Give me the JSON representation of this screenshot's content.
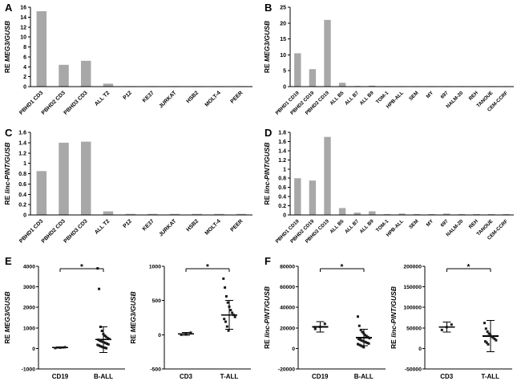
{
  "figure": {
    "panels": [
      {
        "letter": "A"
      },
      {
        "letter": "B"
      },
      {
        "letter": "C"
      },
      {
        "letter": "D"
      },
      {
        "letter": "E"
      },
      {
        "letter": "F"
      }
    ]
  },
  "colors": {
    "bar": "#a8a8a8",
    "axis": "#000000",
    "point": "#1a1a1a"
  },
  "chart_data": [
    {
      "type": "bar",
      "panel": "A",
      "ylabel_prefix": "RE ",
      "ylabel_italic": "MEG3/GUSB",
      "categories": [
        "PBHD1 CD3",
        "PBHD2 CD3",
        "PBHD3 CD3",
        "ALL T2",
        "P12",
        "KE37",
        "JURKAT",
        "HSB2",
        "MOLT-4",
        "PEER"
      ],
      "values": [
        15.2,
        4.4,
        5.2,
        0.6,
        0.05,
        0.05,
        0.05,
        0.05,
        0.05,
        0.05
      ],
      "ylim": [
        0,
        16
      ],
      "ytick_step": 2,
      "grid": false
    },
    {
      "type": "bar",
      "panel": "B",
      "ylabel_prefix": "RE ",
      "ylabel_italic": "MEG3/GUSB",
      "categories": [
        "PBHD1 CD19",
        "PBHD2 CD19",
        "PBHD3 CD19",
        "ALL B5",
        "ALL B7",
        "ALL B9",
        "TOM-1",
        "HPB-ALL",
        "SEM",
        "MY",
        "697",
        "NALM-20",
        "REH",
        "TANOUE",
        "CEM-CCRF"
      ],
      "values": [
        10.5,
        5.5,
        21.0,
        1.2,
        0.2,
        0.3,
        0.15,
        0.1,
        0.1,
        0.1,
        0.1,
        0.1,
        0.1,
        0.1,
        0.1
      ],
      "ylim": [
        0,
        25
      ],
      "ytick_step": 5,
      "grid": false
    },
    {
      "type": "bar",
      "panel": "C",
      "ylabel_prefix": "RE ",
      "ylabel_italic": "linc-PINT/GUSB",
      "categories": [
        "PBHD1 CD3",
        "PBHD2 CD3",
        "PBHD3 CD3",
        "ALL T2",
        "P12",
        "KE37",
        "JURKAT",
        "HSB2",
        "MOLT-4",
        "PEER"
      ],
      "values": [
        0.85,
        1.4,
        1.42,
        0.07,
        0.02,
        0.02,
        0.02,
        0.02,
        0.02,
        0.02
      ],
      "ylim": [
        0,
        1.6
      ],
      "ytick_step": 0.2,
      "grid": false
    },
    {
      "type": "bar",
      "panel": "D",
      "ylabel_prefix": "RE ",
      "ylabel_italic": "linc-PINT/GUSB",
      "categories": [
        "PBHD1 CD19",
        "PBHD2 CD19",
        "PBHD3 CD19",
        "ALL B5",
        "ALL B7",
        "ALL B9",
        "TOM-1",
        "HPB-ALL",
        "SEM",
        "MY",
        "697",
        "NALM-20",
        "REH",
        "TANOUE",
        "CEM-CCRF"
      ],
      "values": [
        0.8,
        0.75,
        1.7,
        0.15,
        0.05,
        0.08,
        0.02,
        0.03,
        0.02,
        0.02,
        0.03,
        0.02,
        0.02,
        0.02,
        0.02
      ],
      "ylim": [
        0,
        1.8
      ],
      "ytick_step": 0.2,
      "grid": false
    },
    {
      "type": "scatter",
      "panel": "E",
      "ylabel_prefix": "RE ",
      "ylabel_italic": "MEG3/GUSB",
      "sig": "*",
      "ylim": [
        -1000,
        4000
      ],
      "ytick_step": 1000,
      "groups": [
        {
          "label": "CD19",
          "points": [
            20,
            40,
            60
          ],
          "mean": 40,
          "err": 30
        },
        {
          "label": "B-ALL",
          "points": [
            3900,
            2900,
            1050,
            850,
            700,
            620,
            560,
            500,
            460,
            420,
            380,
            350,
            320,
            290,
            260,
            230,
            200,
            170,
            140,
            110,
            80,
            50,
            30,
            10
          ],
          "mean": 430,
          "err": 620
        }
      ]
    },
    {
      "type": "scatter",
      "panel": "E",
      "ylabel_prefix": "RE ",
      "ylabel_italic": "MEG3/GUSB",
      "sig": "*",
      "ylim": [
        -500,
        1000
      ],
      "ytick_step": 500,
      "groups": [
        {
          "label": "CD3",
          "points": [
            0,
            15,
            30
          ],
          "mean": 15,
          "err": 20
        },
        {
          "label": "T-ALL",
          "points": [
            820,
            690,
            560,
            470,
            410,
            360,
            320,
            290,
            260,
            230,
            190,
            120,
            60
          ],
          "mean": 290,
          "err": 210
        }
      ]
    },
    {
      "type": "scatter",
      "panel": "F",
      "ylabel_prefix": "RE ",
      "ylabel_italic": "linc-PINT/GUSB",
      "sig": "*",
      "ylim": [
        -20000,
        80000
      ],
      "ytick_step": 20000,
      "groups": [
        {
          "label": "CD19",
          "points": [
            19000,
            21000,
            24000
          ],
          "mean": 21000,
          "err": 5000
        },
        {
          "label": "B-ALL",
          "points": [
            31000,
            22000,
            18000,
            16000,
            14500,
            13000,
            12000,
            11000,
            10000,
            9200,
            8500,
            7800,
            7200,
            6600,
            6000,
            5400,
            4800,
            4200,
            3500,
            2800,
            2000,
            1200
          ],
          "mean": 10500,
          "err": 8000
        }
      ]
    },
    {
      "type": "scatter",
      "panel": "F",
      "ylabel_prefix": "RE ",
      "ylabel_italic": "linc-PINT/GUSB",
      "sig": "*",
      "ylim": [
        -50000,
        200000
      ],
      "ytick_step": 50000,
      "groups": [
        {
          "label": "CD3",
          "points": [
            45000,
            52000,
            58000
          ],
          "mean": 52000,
          "err": 12000
        },
        {
          "label": "T-ALL",
          "points": [
            62000,
            48000,
            41000,
            36000,
            32000,
            29000,
            26000,
            23000,
            20000,
            17000,
            14000,
            10000
          ],
          "mean": 30000,
          "err": 38000
        }
      ]
    }
  ]
}
